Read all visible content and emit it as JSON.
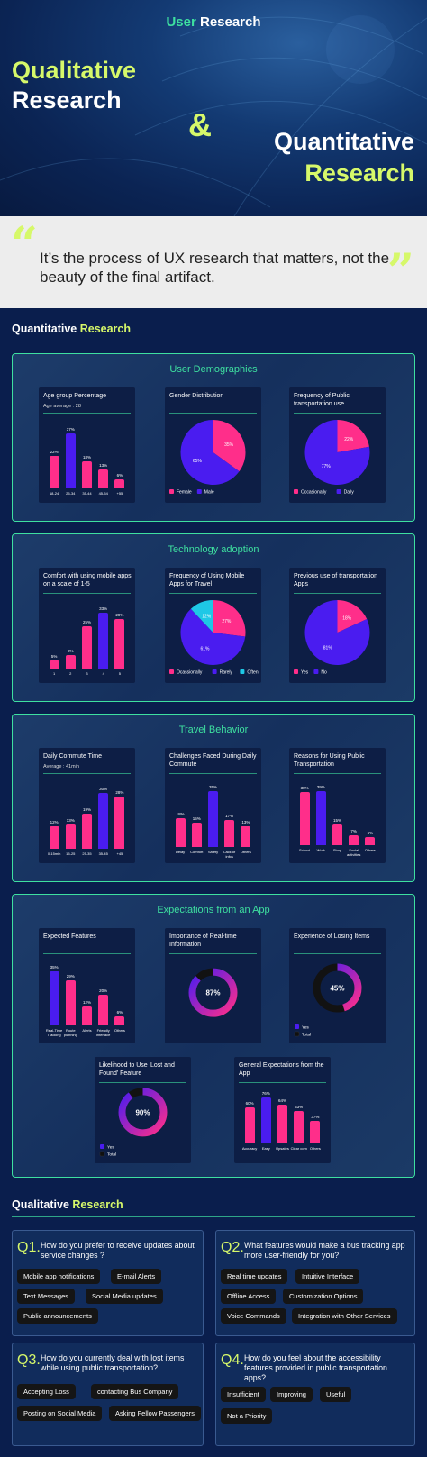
{
  "hero": {
    "tag_accent": "User",
    "tag_rest": " Research",
    "title1_line1": "Qualitative",
    "title1_line2": "Research",
    "ampersand": "&",
    "title2_line1": "Quantitative",
    "title2_line2": "Research"
  },
  "quote": {
    "open": "“",
    "close": "”",
    "text": "It’s the process of UX research that matters, not the beauty of the final artifact."
  },
  "quant": {
    "title_a": "Quantitative",
    "title_b": " Research"
  },
  "qual": {
    "title_a": "Qualitative",
    "title_b": " Research"
  },
  "colors": {
    "pink": "#ff2e8a",
    "purple": "#4a1cf0",
    "cyan": "#1ec8e6",
    "green": "#3ee0a0",
    "lime": "#d6f86a"
  },
  "panels": [
    {
      "title": "User Demographics"
    },
    {
      "title": "Technology adoption"
    },
    {
      "title": "Travel Behavior"
    },
    {
      "title": "Expectations from an App"
    }
  ],
  "cards": {
    "age": {
      "title": "Age group Percentage",
      "sub": "Age average : 28"
    },
    "gender": {
      "title": "Gender Distribution"
    },
    "freq_public": {
      "title": "Frequency of Public transportation use"
    },
    "comfort": {
      "title": "Comfort with using mobile apps on a scale of 1-5"
    },
    "freq_apps": {
      "title": "Frequency of Using Mobile Apps for Travel"
    },
    "prev_use": {
      "title": "Previous use of transportation Apps"
    },
    "commute": {
      "title": "Daily Commute Time",
      "sub": "Average : 41min"
    },
    "challenges": {
      "title": "Challenges Faced During Daily Commute"
    },
    "reasons": {
      "title": "Reasons for Using Public Transportation"
    },
    "features": {
      "title": "Expected Features"
    },
    "realtime": {
      "title": "Importance of Real-time Information"
    },
    "losing": {
      "title": "Experience of Losing Items"
    },
    "lostfound": {
      "title": "Likelihood to Use 'Lost and Found' Feature"
    },
    "general": {
      "title": "General Expectations from the App"
    }
  },
  "chart_data": [
    {
      "id": "age",
      "type": "bar",
      "categories": [
        "18-24",
        "25-34",
        "35-44",
        "45-54",
        "+55"
      ],
      "values": [
        22,
        37,
        18,
        13,
        6
      ],
      "labels": [
        "22%",
        "37%",
        "18%",
        "13%",
        "6%"
      ],
      "ylim": [
        0,
        40
      ]
    },
    {
      "id": "gender",
      "type": "pie",
      "slices": [
        {
          "name": "Female",
          "value": 35,
          "label": "35%",
          "color": "#ff2e8a"
        },
        {
          "name": "Male",
          "value": 65,
          "label": "65%",
          "color": "#4a1cf0"
        }
      ],
      "legend": "bottom"
    },
    {
      "id": "freq_public",
      "type": "pie",
      "slices": [
        {
          "name": "Occasionally",
          "value": 22,
          "label": "22%",
          "color": "#ff2e8a"
        },
        {
          "name": "Daily",
          "value": 77,
          "label": "77%",
          "color": "#4a1cf0"
        }
      ],
      "legend": "bottom"
    },
    {
      "id": "comfort",
      "type": "bar",
      "categories": [
        "1",
        "2",
        "3",
        "4",
        "5"
      ],
      "values": [
        5,
        8,
        25,
        33,
        29
      ],
      "labels": [
        "5%",
        "8%",
        "25%",
        "33%",
        "29%"
      ],
      "ylim": [
        0,
        35
      ]
    },
    {
      "id": "freq_apps",
      "type": "pie",
      "slices": [
        {
          "name": "Ocassionally",
          "value": 27,
          "label": "27%",
          "color": "#ff2e8a"
        },
        {
          "name": "Rarely",
          "value": 61,
          "label": "61%",
          "color": "#4a1cf0"
        },
        {
          "name": "Often",
          "value": 12,
          "label": "12%",
          "color": "#1ec8e6"
        }
      ],
      "legend": "bottom"
    },
    {
      "id": "prev_use",
      "type": "pie",
      "slices": [
        {
          "name": "Yes",
          "value": 18,
          "label": "18%",
          "color": "#ff2e8a"
        },
        {
          "name": "No",
          "value": 81,
          "label": "81%",
          "color": "#4a1cf0"
        }
      ],
      "legend": "bottom"
    },
    {
      "id": "commute",
      "type": "bar",
      "categories": [
        "0-15min",
        "15-25",
        "25-35",
        "35-45",
        "+45"
      ],
      "values": [
        12,
        13,
        19,
        30,
        28
      ],
      "labels": [
        "12%",
        "13%",
        "19%",
        "30%",
        "28%"
      ],
      "ylim": [
        0,
        32
      ]
    },
    {
      "id": "challenges",
      "type": "bar",
      "categories": [
        "Delay",
        "Comfort",
        "Safety",
        "Lack of infos",
        "Others"
      ],
      "values": [
        18,
        15,
        35,
        17,
        13
      ],
      "labels": [
        "18%",
        "15%",
        "35%",
        "17%",
        "13%"
      ],
      "ylim": [
        0,
        36
      ]
    },
    {
      "id": "reasons",
      "type": "bar",
      "categories": [
        "School",
        "Work",
        "Shop",
        "Social activities",
        "Others"
      ],
      "values": [
        38,
        39,
        15,
        7,
        6
      ],
      "labels": [
        "38%",
        "39%",
        "15%",
        "7%",
        "6%"
      ],
      "ylim": [
        0,
        40
      ]
    },
    {
      "id": "features",
      "type": "bar",
      "categories": [
        "Real-Time Tracking",
        "Route planning",
        "Alerts",
        "Friendly interface",
        "Others"
      ],
      "values": [
        35,
        29,
        12,
        20,
        6
      ],
      "labels": [
        "35%",
        "29%",
        "12%",
        "20%",
        "6%"
      ],
      "ylim": [
        0,
        36
      ]
    },
    {
      "id": "realtime",
      "type": "donut",
      "value": 87,
      "label": "87%"
    },
    {
      "id": "losing",
      "type": "donut",
      "value": 45,
      "label": "45%",
      "legend": [
        "Yes",
        "Total"
      ]
    },
    {
      "id": "lostfound",
      "type": "donut",
      "value": 90,
      "label": "90%",
      "legend": [
        "Yes",
        "Total"
      ]
    },
    {
      "id": "general",
      "type": "bar",
      "categories": [
        "Accuracy",
        "Easy",
        "Upsates",
        "Clear com",
        "Others"
      ],
      "values": [
        60,
        76,
        64,
        53,
        37
      ],
      "labels": [
        "60%",
        "76%",
        "64%",
        "53%",
        "37%"
      ],
      "ylim": [
        0,
        80
      ]
    }
  ],
  "questions": [
    {
      "num": "Q1.",
      "text": "How do you prefer to receive updates about service changes ?",
      "chips": [
        "Mobile app notifications",
        "E-mail Alerts",
        "Text Messages",
        "Social Media updates",
        "Public announcements"
      ]
    },
    {
      "num": "Q2.",
      "text": "What features would make a bus tracking app more user-friendly for you?",
      "chips": [
        "Real time updates",
        "Intuitive Interface",
        "Offline Access",
        "Customization Options",
        "Voice Commands",
        "Integration with Other Services"
      ]
    },
    {
      "num": "Q3.",
      "text": "How do you currently deal with lost items while using public transportation?",
      "chips": [
        "Accepting Loss",
        "contacting Bus Company",
        "Posting on Social Media",
        "Asking Fellow Passengers"
      ]
    },
    {
      "num": "Q4.",
      "text": "How do you feel about the accessibility features provided in public transportation apps?",
      "chips": [
        "Insufficient",
        "Improving",
        "Useful",
        "Not a Priority"
      ]
    }
  ]
}
